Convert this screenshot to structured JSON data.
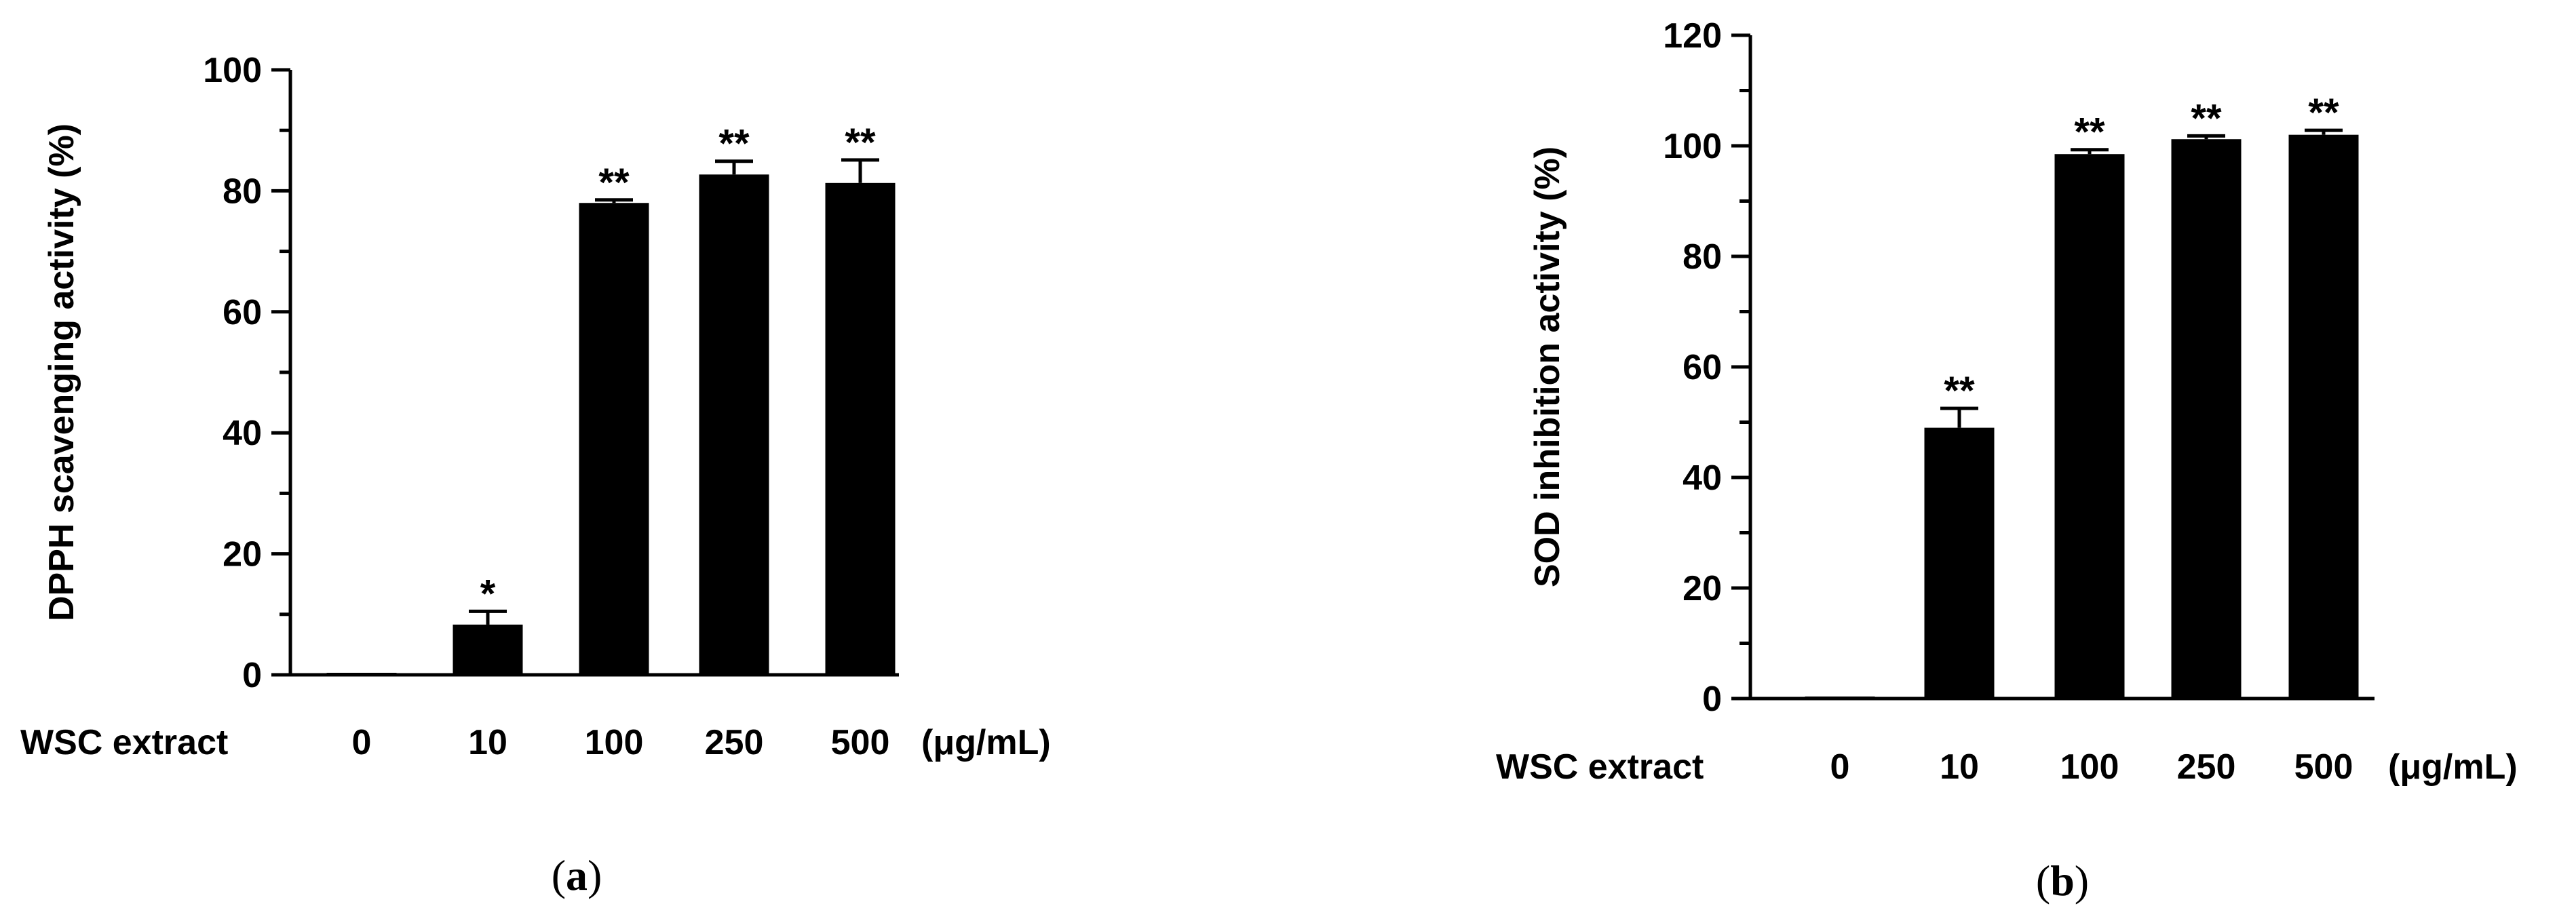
{
  "chart_data": [
    {
      "type": "bar",
      "panel_label": "a",
      "ylabel": "DPPH scavenging activity (%)",
      "x_title": "WSC extract",
      "x_unit": "(μg/mL)",
      "categories": [
        "0",
        "10",
        "100",
        "250",
        "500"
      ],
      "values": [
        0,
        8.3,
        78.0,
        82.7,
        81.3
      ],
      "errors": [
        0,
        2.2,
        0.5,
        2.2,
        3.8
      ],
      "significance": [
        "",
        "*",
        "**",
        "**",
        "**"
      ],
      "ylim": [
        0,
        100
      ],
      "yticks": [
        "0",
        "20",
        "40",
        "60",
        "80",
        "100"
      ],
      "bar_color": "#000000",
      "grid": false,
      "legend": "none"
    },
    {
      "type": "bar",
      "panel_label": "b",
      "ylabel": "SOD inhibition activity (%)",
      "x_title": "WSC extract",
      "x_unit": "(μg/mL)",
      "categories": [
        "0",
        "10",
        "100",
        "250",
        "500"
      ],
      "values": [
        0.3,
        49.0,
        98.5,
        101.2,
        102.0
      ],
      "errors": [
        0,
        3.5,
        0.8,
        0.6,
        0.8
      ],
      "significance": [
        "",
        "**",
        "**",
        "**",
        "**"
      ],
      "ylim": [
        0,
        120
      ],
      "yticks": [
        "0",
        "20",
        "40",
        "60",
        "80",
        "100",
        "120"
      ],
      "bar_color": "#000000",
      "grid": false,
      "legend": "none"
    }
  ]
}
